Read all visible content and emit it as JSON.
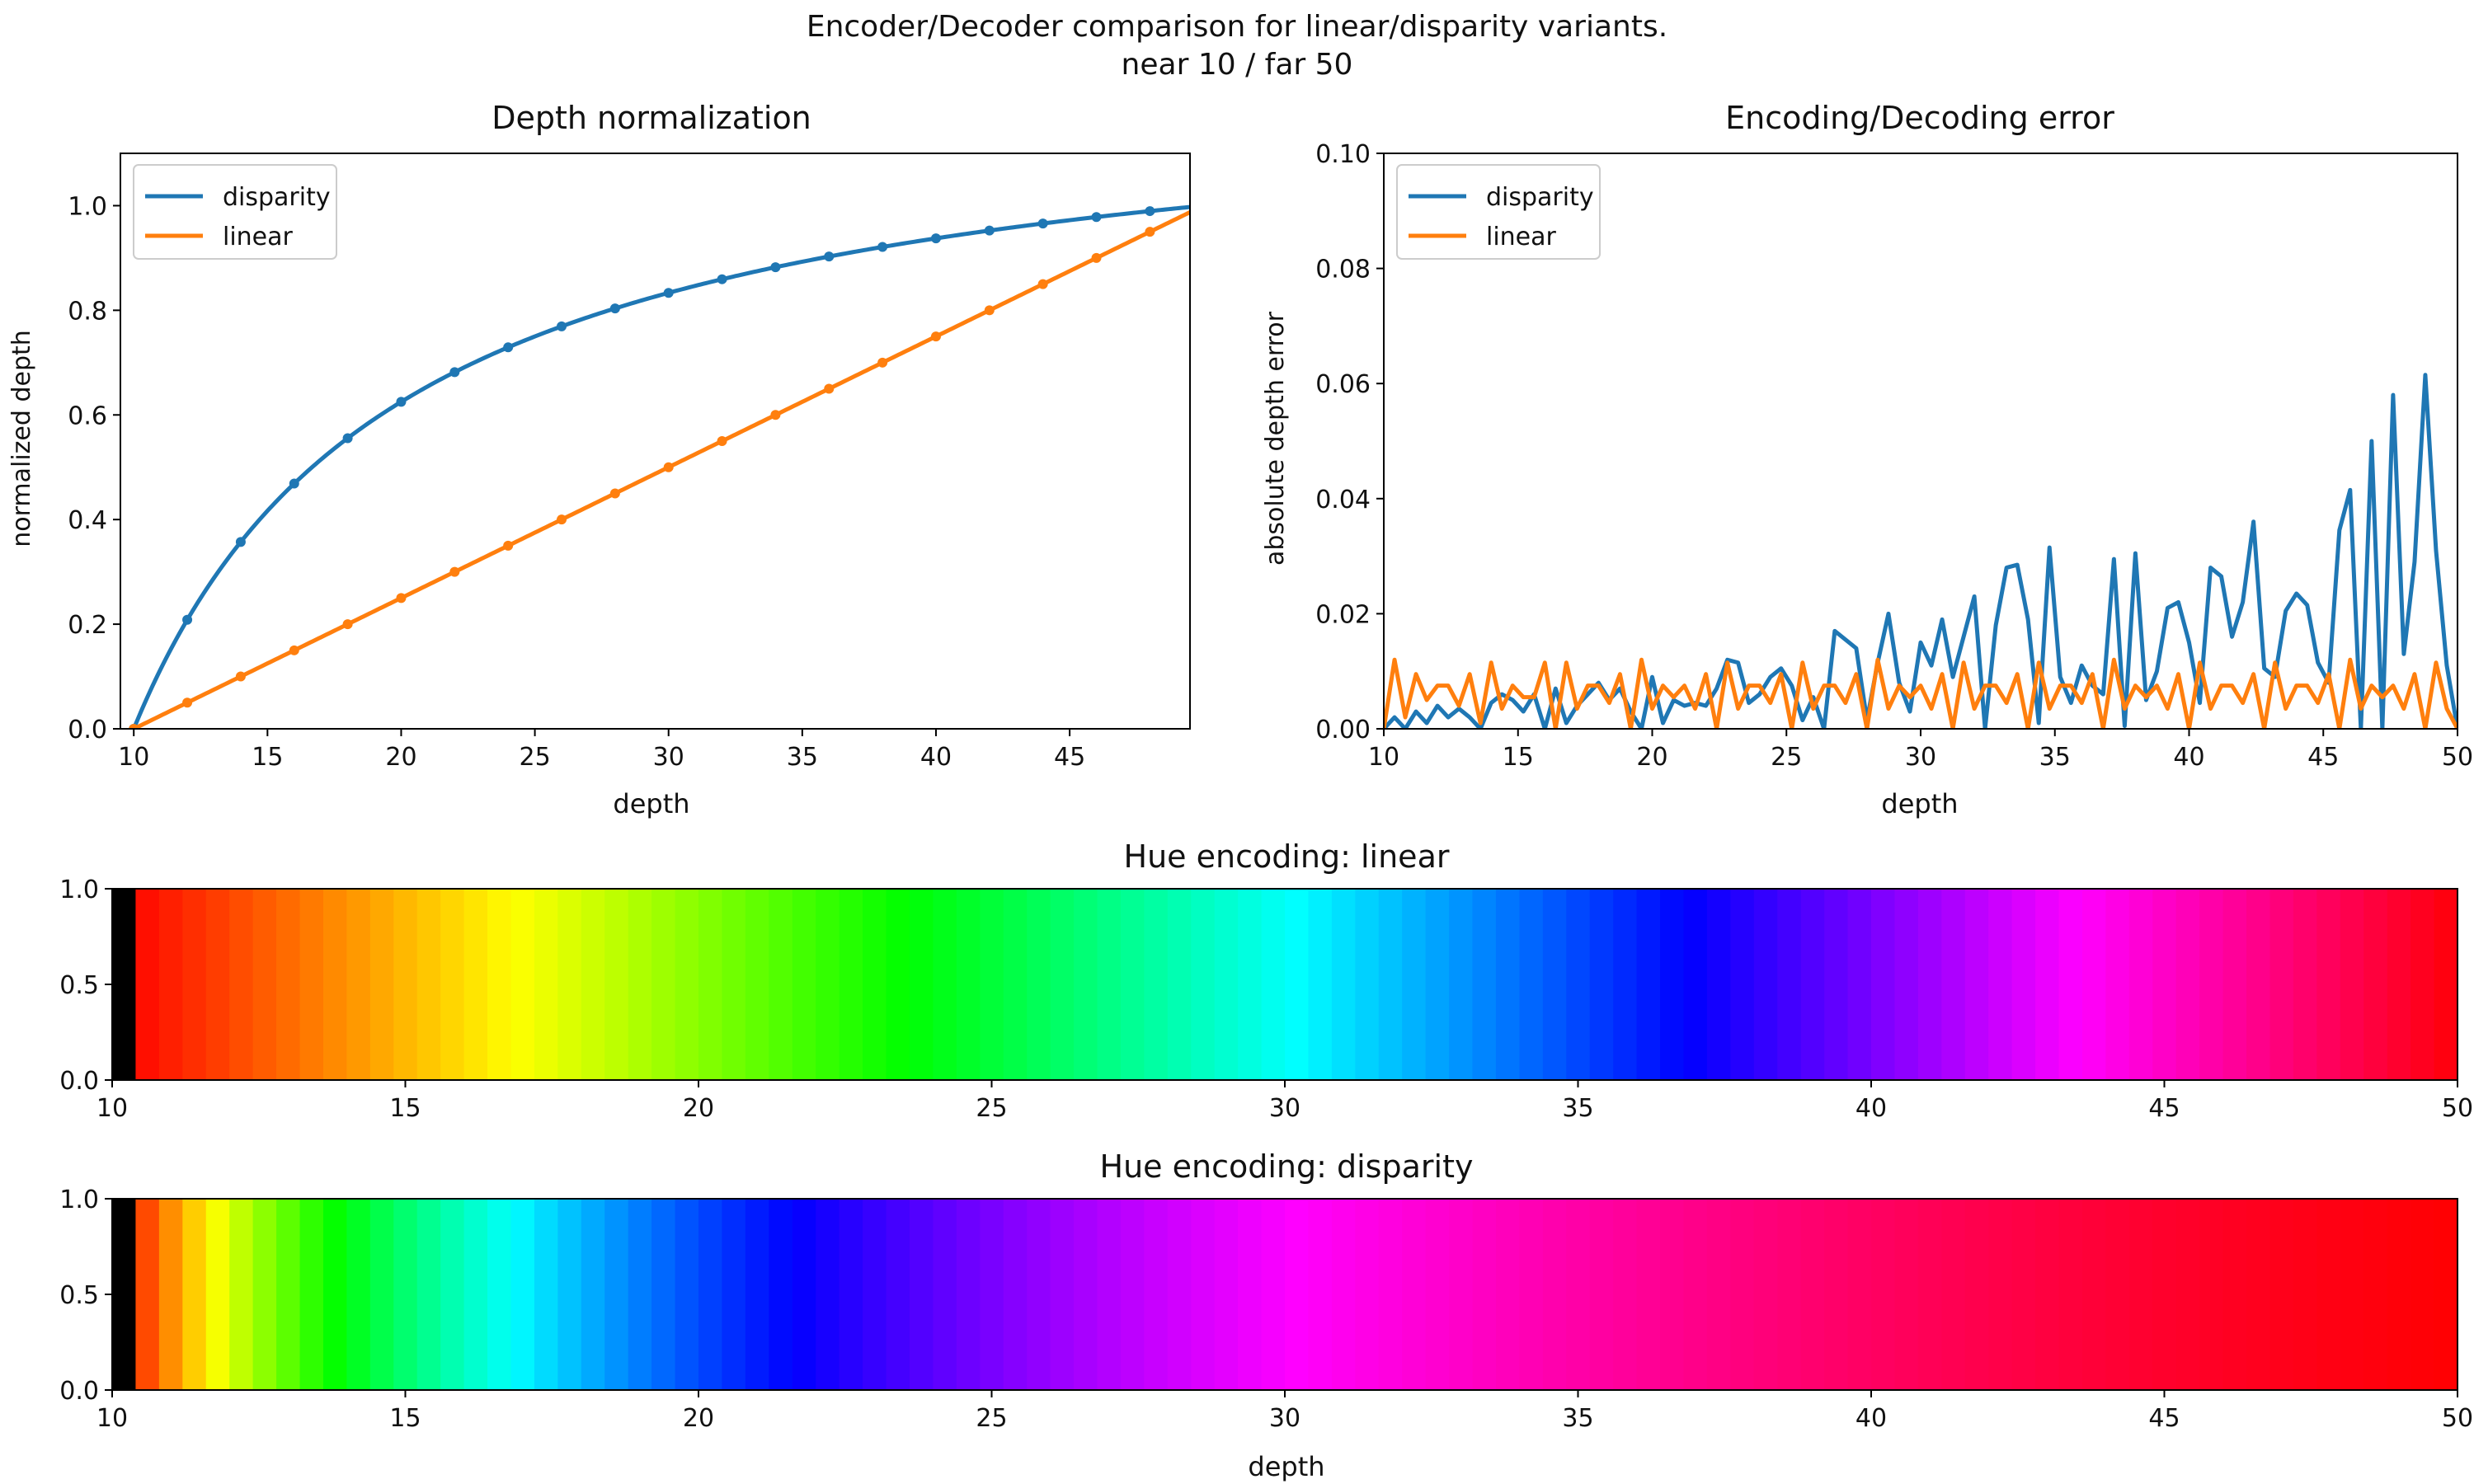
{
  "figure": {
    "title_line1": "Encoder/Decoder comparison for linear/disparity variants.",
    "title_line2": "near 10 / far 50"
  },
  "colors": {
    "disparity": "#1f77b4",
    "linear": "#ff7f0e",
    "axes": "#000000",
    "background": "#ffffff"
  },
  "chart_data": [
    {
      "id": "normalization",
      "type": "line",
      "title": "Depth normalization",
      "xlabel": "depth",
      "ylabel": "normalized depth",
      "xlim": [
        9.5,
        49.5
      ],
      "ylim": [
        0,
        1.1
      ],
      "xticks": [
        10,
        15,
        20,
        25,
        30,
        35,
        40,
        45
      ],
      "yticks": [
        "0.0",
        "0.2",
        "0.4",
        "0.6",
        "0.8",
        "1.0"
      ],
      "legend": "top-left",
      "grid": false,
      "near": 10,
      "far": 50,
      "marker_x": [
        10,
        12,
        14,
        16,
        18,
        20,
        22,
        24,
        26,
        28,
        30,
        32,
        34,
        36,
        38,
        40,
        42,
        44,
        46,
        48
      ],
      "series": [
        {
          "name": "disparity",
          "color_key": "disparity",
          "markers": true
        },
        {
          "name": "linear",
          "color_key": "linear",
          "markers": true
        }
      ]
    },
    {
      "id": "error",
      "type": "line",
      "title": "Encoding/Decoding error",
      "xlabel": "depth",
      "ylabel": "absolute depth error",
      "xlim": [
        10,
        50
      ],
      "ylim": [
        0,
        0.1
      ],
      "xticks": [
        10,
        15,
        20,
        25,
        30,
        35,
        40,
        45,
        50
      ],
      "yticks": [
        "0.00",
        "0.02",
        "0.04",
        "0.06",
        "0.08",
        "0.10"
      ],
      "legend": "top-left",
      "grid": false,
      "series": [
        {
          "name": "disparity",
          "color_key": "disparity",
          "x": [
            10,
            10.4,
            10.8,
            11.2,
            11.6,
            12.0,
            12.4,
            12.8,
            13.2,
            13.6,
            14.0,
            14.4,
            14.8,
            15.2,
            15.6,
            16.0,
            16.4,
            16.8,
            17.2,
            17.6,
            18.0,
            18.4,
            18.8,
            19.2,
            19.6,
            20.0,
            20.4,
            20.8,
            21.2,
            21.6,
            22.0,
            22.4,
            22.8,
            23.2,
            23.6,
            24.0,
            24.4,
            24.8,
            25.2,
            25.6,
            26.0,
            26.4,
            26.8,
            27.2,
            27.6,
            28.0,
            28.4,
            28.8,
            29.2,
            29.6,
            30.0,
            30.4,
            30.8,
            31.2,
            31.6,
            32.0,
            32.4,
            32.8,
            33.2,
            33.6,
            34.0,
            34.4,
            34.8,
            35.2,
            35.6,
            36.0,
            36.4,
            36.8,
            37.2,
            37.6,
            38.0,
            38.4,
            38.8,
            39.2,
            39.6,
            40.0,
            40.4,
            40.8,
            41.2,
            41.6,
            42.0,
            42.4,
            42.8,
            43.2,
            43.6,
            44.0,
            44.4,
            44.8,
            45.2,
            45.6,
            46.0,
            46.4,
            46.8,
            47.2,
            47.6,
            48.0,
            48.4,
            48.8,
            49.2,
            49.6,
            50.0
          ],
          "values": [
            0.0,
            0.002,
            0.0,
            0.003,
            0.001,
            0.004,
            0.002,
            0.0035,
            0.002,
            0.0,
            0.0045,
            0.006,
            0.005,
            0.003,
            0.006,
            0.0,
            0.007,
            0.001,
            0.004,
            0.006,
            0.008,
            0.005,
            0.007,
            0.003,
            0.0,
            0.009,
            0.001,
            0.005,
            0.004,
            0.0045,
            0.004,
            0.007,
            0.012,
            0.0115,
            0.0045,
            0.006,
            0.009,
            0.0105,
            0.0075,
            0.0015,
            0.0055,
            0.0,
            0.017,
            0.0155,
            0.014,
            0.0015,
            0.0115,
            0.02,
            0.008,
            0.003,
            0.015,
            0.011,
            0.019,
            0.009,
            0.016,
            0.023,
            0.0,
            0.018,
            0.028,
            0.0285,
            0.019,
            0.001,
            0.0315,
            0.009,
            0.0045,
            0.011,
            0.0075,
            0.006,
            0.0295,
            0.0005,
            0.0305,
            0.005,
            0.01,
            0.021,
            0.022,
            0.015,
            0.0045,
            0.028,
            0.0265,
            0.016,
            0.022,
            0.036,
            0.0105,
            0.009,
            0.0205,
            0.0235,
            0.0215,
            0.0115,
            0.008,
            0.0345,
            0.0415,
            0.0,
            0.05,
            0.0,
            0.058,
            0.013,
            0.029,
            0.0615,
            0.031,
            0.011,
            0.0
          ]
        },
        {
          "name": "linear",
          "color_key": "linear",
          "x": [
            10,
            10.4,
            10.8,
            11.2,
            11.6,
            12.0,
            12.4,
            12.8,
            13.2,
            13.6,
            14.0,
            14.4,
            14.8,
            15.2,
            15.6,
            16.0,
            16.4,
            16.8,
            17.2,
            17.6,
            18.0,
            18.4,
            18.8,
            19.2,
            19.6,
            20.0,
            20.4,
            20.8,
            21.2,
            21.6,
            22.0,
            22.4,
            22.8,
            23.2,
            23.6,
            24.0,
            24.4,
            24.8,
            25.2,
            25.6,
            26.0,
            26.4,
            26.8,
            27.2,
            27.6,
            28.0,
            28.4,
            28.8,
            29.2,
            29.6,
            30.0,
            30.4,
            30.8,
            31.2,
            31.6,
            32.0,
            32.4,
            32.8,
            33.2,
            33.6,
            34.0,
            34.4,
            34.8,
            35.2,
            35.6,
            36.0,
            36.4,
            36.8,
            37.2,
            37.6,
            38.0,
            38.4,
            38.8,
            39.2,
            39.6,
            40.0,
            40.4,
            40.8,
            41.2,
            41.6,
            42.0,
            42.4,
            42.8,
            43.2,
            43.6,
            44.0,
            44.4,
            44.8,
            45.2,
            45.6,
            46.0,
            46.4,
            46.8,
            47.2,
            47.6,
            48.0,
            48.4,
            48.8,
            49.2,
            49.6,
            50.0
          ],
          "values": [
            0.0,
            0.012,
            0.002,
            0.0095,
            0.005,
            0.0075,
            0.0075,
            0.004,
            0.0095,
            0.001,
            0.0115,
            0.0035,
            0.0075,
            0.0055,
            0.0055,
            0.0115,
            0.0,
            0.0115,
            0.0035,
            0.0075,
            0.0075,
            0.0045,
            0.0095,
            0.0,
            0.012,
            0.0035,
            0.0075,
            0.0055,
            0.0075,
            0.0035,
            0.0095,
            0.0,
            0.0115,
            0.0035,
            0.0075,
            0.0075,
            0.0045,
            0.0095,
            0.0,
            0.0115,
            0.0035,
            0.0075,
            0.0075,
            0.0045,
            0.0095,
            0.0,
            0.012,
            0.0035,
            0.0075,
            0.0055,
            0.0075,
            0.0035,
            0.0095,
            0.0,
            0.0115,
            0.0035,
            0.0075,
            0.0075,
            0.0045,
            0.0095,
            0.0,
            0.0115,
            0.0035,
            0.0075,
            0.0075,
            0.0045,
            0.0095,
            0.0,
            0.012,
            0.0035,
            0.0075,
            0.0055,
            0.0075,
            0.0035,
            0.0095,
            0.0,
            0.0115,
            0.0035,
            0.0075,
            0.0075,
            0.0045,
            0.0095,
            0.0,
            0.0115,
            0.0035,
            0.0075,
            0.0075,
            0.0045,
            0.0095,
            0.0,
            0.012,
            0.0035,
            0.0075,
            0.0055,
            0.0075,
            0.0035,
            0.0095,
            0.0,
            0.0115,
            0.0035,
            0.0
          ]
        }
      ]
    },
    {
      "id": "hue_linear",
      "type": "heatmap",
      "title": "Hue encoding: linear",
      "xlabel": "",
      "ylabel": "",
      "encoding": "linear",
      "xlim": [
        10,
        50
      ],
      "ylim": [
        0,
        1
      ],
      "xticks": [
        10,
        15,
        20,
        25,
        30,
        35,
        40,
        45,
        50
      ],
      "yticks": [
        "0.0",
        "0.5",
        "1.0"
      ],
      "near": 10,
      "far": 50,
      "step": 0.4
    },
    {
      "id": "hue_disparity",
      "type": "heatmap",
      "title": "Hue encoding: disparity",
      "xlabel": "depth",
      "ylabel": "",
      "encoding": "disparity",
      "xlim": [
        10,
        50
      ],
      "ylim": [
        0,
        1
      ],
      "xticks": [
        10,
        15,
        20,
        25,
        30,
        35,
        40,
        45,
        50
      ],
      "yticks": [
        "0.0",
        "0.5",
        "1.0"
      ],
      "near": 10,
      "far": 50,
      "step": 0.4
    }
  ]
}
